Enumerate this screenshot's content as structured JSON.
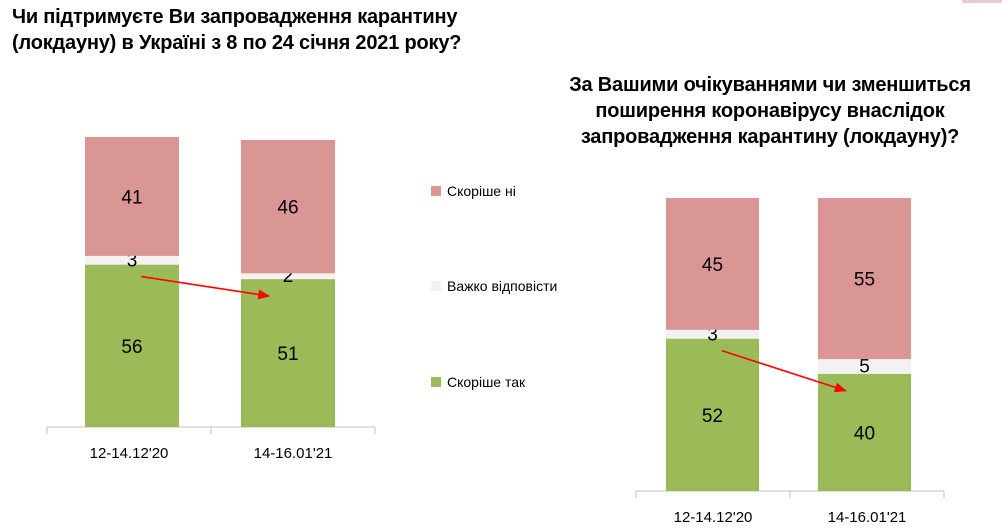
{
  "chart_data": [
    {
      "type": "bar",
      "stacked": true,
      "title": [
        "Чи підтримуєте Ви запровадження карантину",
        "(локдауну)  в Україні з 8 по 24 січня 2021 року?"
      ],
      "categories": [
        "12-14.12'20",
        "14-16.01'21"
      ],
      "series": [
        {
          "name": "Скоріше так",
          "values": [
            56,
            51
          ],
          "color": "#9bbb59"
        },
        {
          "name": "Важко відповісти",
          "values": [
            3,
            2
          ],
          "color": "#f2f2f2"
        },
        {
          "name": "Скоріше ні",
          "values": [
            41,
            46
          ],
          "color": "#d99694"
        }
      ],
      "ylim": [
        0,
        100
      ],
      "annotation": "red arrow between 'Скоріше так' tops",
      "grid": false
    },
    {
      "type": "bar",
      "stacked": true,
      "title": [
        "За Вашими очікуваннями чи зменшиться",
        "поширення коронавірусу внаслідок",
        "запровадження карантину (локдауну)?"
      ],
      "categories": [
        "12-14.12'20",
        "14-16.01'21"
      ],
      "series": [
        {
          "name": "Скоріше так",
          "values": [
            52,
            40
          ],
          "color": "#9bbb59"
        },
        {
          "name": "Важко відповісти",
          "values": [
            3,
            5
          ],
          "color": "#f2f2f2"
        },
        {
          "name": "Скоріше ні",
          "values": [
            45,
            55
          ],
          "color": "#d99694"
        }
      ],
      "ylim": [
        0,
        100
      ],
      "annotation": "red arrow between 'Скоріше так' tops",
      "grid": false
    }
  ],
  "legend": {
    "placement": "center",
    "items": [
      {
        "label": "Скоріше ні",
        "color": "#d99694"
      },
      {
        "label": "Важко відповісти",
        "color": "#f2f2f2"
      },
      {
        "label": "Скоріше так",
        "color": "#9bbb59"
      }
    ]
  },
  "colors": {
    "arrow": "#ff0000",
    "axis": "#bfbfbf"
  }
}
